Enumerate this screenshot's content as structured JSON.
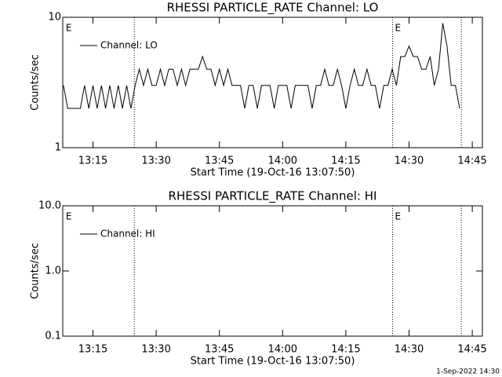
{
  "chart_data": [
    {
      "type": "line",
      "title": "RHESSI PARTICLE_RATE Channel: LO",
      "xlabel": "Start Time (19-Oct-16 13:07:50)",
      "ylabel": "Counts/sec",
      "log_y": true,
      "ylim": [
        1,
        10
      ],
      "yticks": [
        1,
        10
      ],
      "xlim": [
        787.83,
        887.4
      ],
      "xticks": [
        {
          "value": 795,
          "label": "13:15"
        },
        {
          "value": 810,
          "label": "13:30"
        },
        {
          "value": 825,
          "label": "13:45"
        },
        {
          "value": 840,
          "label": "14:00"
        },
        {
          "value": 855,
          "label": "14:15"
        },
        {
          "value": 870,
          "label": "14:30"
        },
        {
          "value": 885,
          "label": "14:45"
        }
      ],
      "vlines": [
        804.8,
        866.1,
        882.4
      ],
      "event_labels": [
        {
          "x": 788,
          "label": "E"
        },
        {
          "x": 866.1,
          "label": "E"
        }
      ],
      "legend": "upper left",
      "series": [
        {
          "name": "Channel: LO",
          "color": "#000000",
          "x": [
            788,
            789,
            790,
            791,
            792,
            793,
            794,
            795,
            796,
            797,
            798,
            799,
            800,
            801,
            802,
            803,
            804,
            805,
            806,
            807,
            808,
            809,
            810,
            811,
            812,
            813,
            814,
            815,
            816,
            817,
            818,
            819,
            820,
            821,
            822,
            823,
            824,
            825,
            826,
            827,
            828,
            829,
            830,
            831,
            832,
            833,
            834,
            835,
            836,
            837,
            838,
            839,
            840,
            841,
            842,
            843,
            844,
            845,
            846,
            847,
            848,
            849,
            850,
            851,
            852,
            853,
            854,
            855,
            856,
            857,
            858,
            859,
            860,
            861,
            862,
            863,
            864,
            865,
            866,
            867,
            868,
            869,
            870,
            871,
            872,
            873,
            874,
            875,
            876,
            877,
            878,
            879,
            880,
            881,
            882
          ],
          "values": [
            3,
            2,
            2,
            2,
            2,
            3,
            2,
            3,
            2,
            3,
            2,
            3,
            2,
            3,
            2,
            3,
            2,
            3,
            4,
            3,
            4,
            3,
            3,
            4,
            3,
            4,
            4,
            3,
            4,
            3,
            4,
            4,
            4,
            5,
            4,
            4,
            3,
            4,
            3,
            4,
            3,
            3,
            3,
            2,
            3,
            3,
            2,
            3,
            3,
            3,
            2,
            3,
            3,
            3,
            2,
            3,
            3,
            3,
            3,
            2,
            3,
            3,
            4,
            3,
            3,
            4,
            3,
            2,
            3,
            4,
            3,
            3,
            4,
            3,
            3,
            2,
            3,
            3,
            4,
            3,
            5,
            5,
            6,
            5,
            5,
            4,
            4,
            5,
            3,
            4,
            9,
            6,
            3,
            3,
            2
          ]
        }
      ]
    },
    {
      "type": "line",
      "title": "RHESSI PARTICLE_RATE Channel: HI",
      "xlabel": "Start Time (19-Oct-16 13:07:50)",
      "ylabel": "Counts/sec",
      "log_y": true,
      "ylim": [
        0.1,
        10
      ],
      "yticks": [
        0.1,
        {
          "value": 1,
          "label": "1.0"
        },
        {
          "value": 10,
          "label": "10.0"
        }
      ],
      "xlim": [
        787.83,
        887.4
      ],
      "xticks": [
        {
          "value": 795,
          "label": "13:15"
        },
        {
          "value": 810,
          "label": "13:30"
        },
        {
          "value": 825,
          "label": "13:45"
        },
        {
          "value": 840,
          "label": "14:00"
        },
        {
          "value": 855,
          "label": "14:15"
        },
        {
          "value": 870,
          "label": "14:30"
        },
        {
          "value": 885,
          "label": "14:45"
        }
      ],
      "vlines": [
        804.8,
        866.1,
        882.4
      ],
      "event_labels": [
        {
          "x": 788,
          "label": "E"
        },
        {
          "x": 866.1,
          "label": "E"
        }
      ],
      "legend": "upper left",
      "series": [
        {
          "name": "Channel: HI",
          "color": "#000000",
          "x": [],
          "values": []
        }
      ]
    }
  ],
  "footer": "1-Sep-2022 14:30"
}
